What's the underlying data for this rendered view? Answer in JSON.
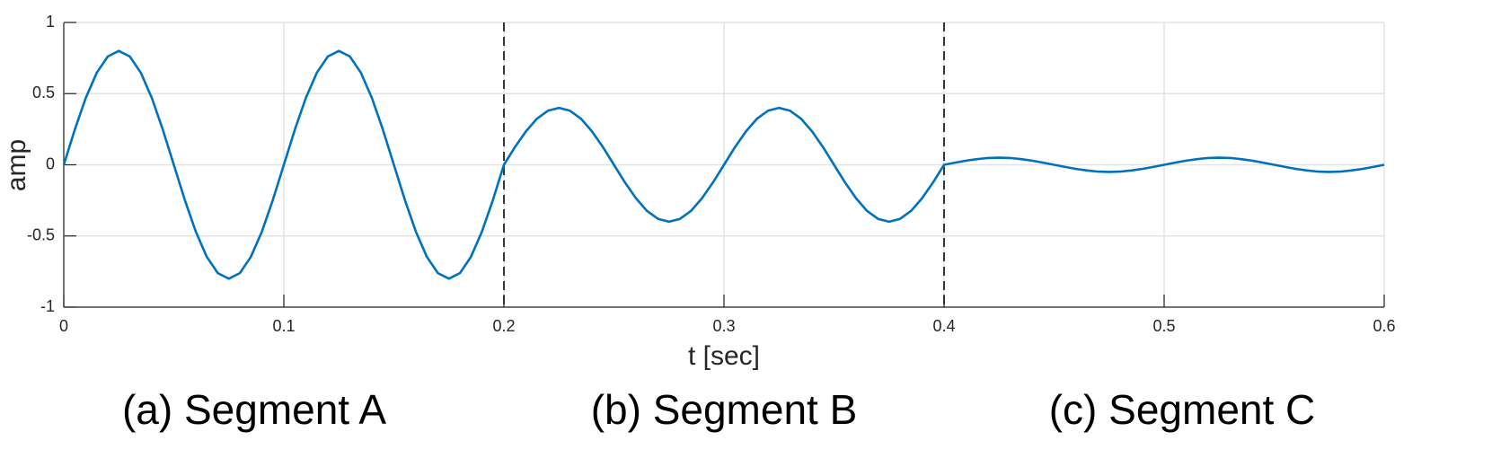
{
  "chart_data": {
    "type": "line",
    "xlabel": "t [sec]",
    "ylabel": "amp",
    "x": [
      0,
      0.005,
      0.01,
      0.015,
      0.02,
      0.025,
      0.03,
      0.035,
      0.04,
      0.045,
      0.05,
      0.055,
      0.06,
      0.065,
      0.07,
      0.075,
      0.08,
      0.085,
      0.09,
      0.095,
      0.1,
      0.105,
      0.11,
      0.115,
      0.12,
      0.125,
      0.13,
      0.135,
      0.14,
      0.145,
      0.15,
      0.155,
      0.16,
      0.165,
      0.17,
      0.175,
      0.18,
      0.185,
      0.19,
      0.195,
      0.2,
      0.205,
      0.21,
      0.215,
      0.22,
      0.225,
      0.23,
      0.235,
      0.24,
      0.245,
      0.25,
      0.255,
      0.26,
      0.265,
      0.27,
      0.275,
      0.28,
      0.285,
      0.29,
      0.295,
      0.3,
      0.305,
      0.31,
      0.315,
      0.32,
      0.325,
      0.33,
      0.335,
      0.34,
      0.345,
      0.35,
      0.355,
      0.36,
      0.365,
      0.37,
      0.375,
      0.38,
      0.385,
      0.39,
      0.395,
      0.4,
      0.405,
      0.41,
      0.415,
      0.42,
      0.425,
      0.43,
      0.435,
      0.44,
      0.445,
      0.45,
      0.455,
      0.46,
      0.465,
      0.47,
      0.475,
      0.48,
      0.485,
      0.49,
      0.495,
      0.5,
      0.505,
      0.51,
      0.515,
      0.52,
      0.525,
      0.53,
      0.535,
      0.54,
      0.545,
      0.55,
      0.555,
      0.56,
      0.565,
      0.57,
      0.575,
      0.58,
      0.585,
      0.59,
      0.595,
      0.6
    ],
    "series": [
      {
        "color": "#0072bd",
        "values": [
          0,
          0.247,
          0.47,
          0.647,
          0.761,
          0.8,
          0.761,
          0.647,
          0.47,
          0.247,
          0,
          -0.247,
          -0.47,
          -0.647,
          -0.761,
          -0.8,
          -0.761,
          -0.647,
          -0.47,
          -0.247,
          0,
          0.247,
          0.47,
          0.647,
          0.761,
          0.8,
          0.761,
          0.647,
          0.47,
          0.247,
          0,
          -0.247,
          -0.47,
          -0.647,
          -0.761,
          -0.8,
          -0.761,
          -0.647,
          -0.47,
          -0.247,
          0,
          0.124,
          0.235,
          0.324,
          0.38,
          0.4,
          0.38,
          0.324,
          0.235,
          0.124,
          0,
          -0.124,
          -0.235,
          -0.324,
          -0.38,
          -0.4,
          -0.38,
          -0.324,
          -0.235,
          -0.124,
          0,
          0.124,
          0.235,
          0.324,
          0.38,
          0.4,
          0.38,
          0.324,
          0.235,
          0.124,
          0,
          -0.124,
          -0.235,
          -0.324,
          -0.38,
          -0.4,
          -0.38,
          -0.324,
          -0.235,
          -0.124,
          0,
          0.015,
          0.029,
          0.04,
          0.048,
          0.05,
          0.048,
          0.04,
          0.029,
          0.015,
          0,
          -0.015,
          -0.029,
          -0.04,
          -0.048,
          -0.05,
          -0.048,
          -0.04,
          -0.029,
          -0.015,
          0,
          0.015,
          0.029,
          0.04,
          0.048,
          0.05,
          0.048,
          0.04,
          0.029,
          0.015,
          0,
          -0.015,
          -0.029,
          -0.04,
          -0.048,
          -0.05,
          -0.048,
          -0.04,
          -0.029,
          -0.015,
          0
        ]
      }
    ],
    "xlim": [
      0,
      0.6
    ],
    "xticks": [
      0,
      0.1,
      0.2,
      0.3,
      0.4,
      0.5,
      0.6
    ],
    "ylim": [
      -1,
      1
    ],
    "yticks": [
      -1,
      -0.5,
      0,
      0.5,
      1
    ],
    "grid": true,
    "vlines": [
      0.2,
      0.4
    ],
    "segment_labels": [
      "(a) Segment A",
      "(b) Segment B",
      "(c) Segment C"
    ]
  }
}
